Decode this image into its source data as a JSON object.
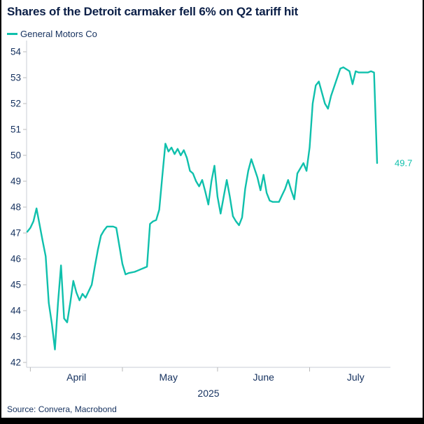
{
  "header": {
    "title": "Shares of the Detroit carmaker fell 6% on Q2 tariff hit"
  },
  "legend": {
    "label": "General Motors Co",
    "color": "#0fc0ac"
  },
  "footer": {
    "source": "Source: Convera, Macrobond"
  },
  "colors": {
    "accent_teal": "#0fc0ac",
    "title_navy": "#0b1f47",
    "axis_text_navy": "#14305e",
    "axis_line_gray": "#c9ced4",
    "tick_gray": "#b8b8b8",
    "frame_black": "#000000"
  },
  "chart_data": {
    "type": "line",
    "title": "Shares of the Detroit carmaker fell 6% on Q2 tariff hit",
    "xlabel": "2025",
    "ylabel": "",
    "grid": false,
    "legend_position": "top-left",
    "x_start": "2025-03-31",
    "ylim": [
      42,
      54
    ],
    "y_ticks": [
      42,
      43,
      44,
      45,
      46,
      47,
      48,
      49,
      50,
      51,
      52,
      53,
      54
    ],
    "x_axis": {
      "year_label": "2025",
      "month_ticks": [
        "2025-04-01",
        "2025-05-01",
        "2025-06-01",
        "2025-07-01"
      ],
      "month_labels": [
        {
          "label": "April",
          "center": "2025-04-16"
        },
        {
          "label": "May",
          "center": "2025-05-16"
        },
        {
          "label": "June",
          "center": "2025-06-16"
        },
        {
          "label": "July",
          "center": "2025-07-16"
        }
      ]
    },
    "end_label": "49.7",
    "series": [
      {
        "name": "General Motors Co",
        "color": "#0fc0ac",
        "points": [
          [
            "2025-03-31",
            47.05
          ],
          [
            "2025-04-01",
            47.2
          ],
          [
            "2025-04-02",
            47.45
          ],
          [
            "2025-04-03",
            47.95
          ],
          [
            "2025-04-05",
            46.7
          ],
          [
            "2025-04-06",
            46.1
          ],
          [
            "2025-04-07",
            44.3
          ],
          [
            "2025-04-08",
            43.5
          ],
          [
            "2025-04-09",
            42.5
          ],
          [
            "2025-04-10",
            44.3
          ],
          [
            "2025-04-11",
            45.75
          ],
          [
            "2025-04-12",
            43.7
          ],
          [
            "2025-04-13",
            43.55
          ],
          [
            "2025-04-14",
            44.3
          ],
          [
            "2025-04-15",
            45.15
          ],
          [
            "2025-04-16",
            44.7
          ],
          [
            "2025-04-17",
            44.4
          ],
          [
            "2025-04-18",
            44.65
          ],
          [
            "2025-04-19",
            44.5
          ],
          [
            "2025-04-21",
            45.0
          ],
          [
            "2025-04-22",
            45.7
          ],
          [
            "2025-04-23",
            46.35
          ],
          [
            "2025-04-24",
            46.9
          ],
          [
            "2025-04-25",
            47.1
          ],
          [
            "2025-04-26",
            47.25
          ],
          [
            "2025-04-28",
            47.25
          ],
          [
            "2025-04-29",
            47.2
          ],
          [
            "2025-04-30",
            46.5
          ],
          [
            "2025-05-01",
            45.8
          ],
          [
            "2025-05-02",
            45.4
          ],
          [
            "2025-05-03",
            45.45
          ],
          [
            "2025-05-05",
            45.5
          ],
          [
            "2025-05-06",
            45.55
          ],
          [
            "2025-05-07",
            45.6
          ],
          [
            "2025-05-08",
            45.65
          ],
          [
            "2025-05-09",
            45.7
          ],
          [
            "2025-05-10",
            47.35
          ],
          [
            "2025-05-11",
            47.45
          ],
          [
            "2025-05-12",
            47.5
          ],
          [
            "2025-05-13",
            47.9
          ],
          [
            "2025-05-14",
            49.2
          ],
          [
            "2025-05-15",
            50.45
          ],
          [
            "2025-05-16",
            50.15
          ],
          [
            "2025-05-17",
            50.3
          ],
          [
            "2025-05-18",
            50.05
          ],
          [
            "2025-05-19",
            50.25
          ],
          [
            "2025-05-20",
            50.0
          ],
          [
            "2025-05-21",
            50.2
          ],
          [
            "2025-05-22",
            49.9
          ],
          [
            "2025-05-23",
            49.4
          ],
          [
            "2025-05-24",
            49.3
          ],
          [
            "2025-05-25",
            49.0
          ],
          [
            "2025-05-26",
            48.8
          ],
          [
            "2025-05-27",
            49.05
          ],
          [
            "2025-05-28",
            48.6
          ],
          [
            "2025-05-29",
            48.1
          ],
          [
            "2025-05-30",
            49.0
          ],
          [
            "2025-05-31",
            49.6
          ],
          [
            "2025-06-01",
            48.4
          ],
          [
            "2025-06-02",
            47.75
          ],
          [
            "2025-06-03",
            48.4
          ],
          [
            "2025-06-04",
            49.05
          ],
          [
            "2025-06-05",
            48.4
          ],
          [
            "2025-06-06",
            47.65
          ],
          [
            "2025-06-07",
            47.45
          ],
          [
            "2025-06-08",
            47.3
          ],
          [
            "2025-06-09",
            47.6
          ],
          [
            "2025-06-10",
            48.7
          ],
          [
            "2025-06-11",
            49.4
          ],
          [
            "2025-06-12",
            49.85
          ],
          [
            "2025-06-14",
            49.15
          ],
          [
            "2025-06-15",
            48.65
          ],
          [
            "2025-06-16",
            49.25
          ],
          [
            "2025-06-17",
            48.55
          ],
          [
            "2025-06-18",
            48.25
          ],
          [
            "2025-06-19",
            48.2
          ],
          [
            "2025-06-21",
            48.2
          ],
          [
            "2025-06-22",
            48.45
          ],
          [
            "2025-06-23",
            48.7
          ],
          [
            "2025-06-24",
            49.05
          ],
          [
            "2025-06-25",
            48.65
          ],
          [
            "2025-06-26",
            48.3
          ],
          [
            "2025-06-27",
            49.3
          ],
          [
            "2025-06-29",
            49.7
          ],
          [
            "2025-06-30",
            49.4
          ],
          [
            "2025-07-01",
            50.3
          ],
          [
            "2025-07-02",
            52.0
          ],
          [
            "2025-07-03",
            52.7
          ],
          [
            "2025-07-04",
            52.85
          ],
          [
            "2025-07-06",
            52.0
          ],
          [
            "2025-07-07",
            51.8
          ],
          [
            "2025-07-08",
            52.3
          ],
          [
            "2025-07-10",
            53.0
          ],
          [
            "2025-07-11",
            53.35
          ],
          [
            "2025-07-12",
            53.4
          ],
          [
            "2025-07-14",
            53.25
          ],
          [
            "2025-07-15",
            52.75
          ],
          [
            "2025-07-16",
            53.25
          ],
          [
            "2025-07-17",
            53.2
          ],
          [
            "2025-07-19",
            53.2
          ],
          [
            "2025-07-20",
            53.2
          ],
          [
            "2025-07-21",
            53.25
          ],
          [
            "2025-07-22",
            53.2
          ],
          [
            "2025-07-23",
            49.7
          ]
        ]
      }
    ]
  }
}
